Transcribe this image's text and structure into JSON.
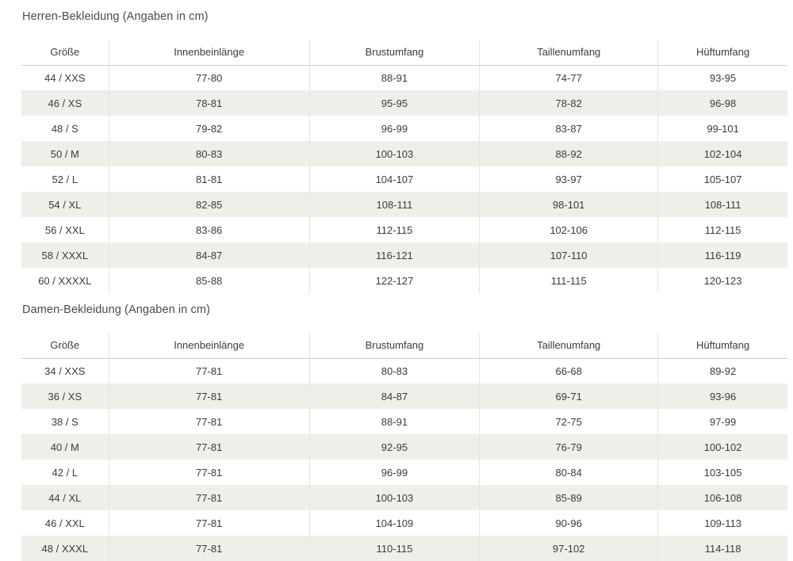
{
  "colors": {
    "page_background": "#ffffff",
    "stripe_row_background": "#f0eee9",
    "cell_divider": "#e6e4e0",
    "header_bottom_border": "#cfcdc9",
    "body_text": "#3b3b3b",
    "title_text": "#4a4a4a"
  },
  "sections": [
    {
      "title": "Herren-Bekleidung (Angaben in cm)",
      "table": {
        "headers": [
          "Größe",
          "Innenbeinlänge",
          "Brustumfang",
          "Taillenumfang",
          "Hüftumfang"
        ],
        "rows": [
          [
            "44 / XXS",
            "77-80",
            "88-91",
            "74-77",
            "93-95"
          ],
          [
            "46 / XS",
            "78-81",
            "95-95",
            "78-82",
            "96-98"
          ],
          [
            "48 / S",
            "79-82",
            "96-99",
            "83-87",
            "99-101"
          ],
          [
            "50 / M",
            "80-83",
            "100-103",
            "88-92",
            "102-104"
          ],
          [
            "52 / L",
            "81-81",
            "104-107",
            "93-97",
            "105-107"
          ],
          [
            "54 / XL",
            "82-85",
            "108-111",
            "98-101",
            "108-111"
          ],
          [
            "56 / XXL",
            "83-86",
            "112-115",
            "102-106",
            "112-115"
          ],
          [
            "58 / XXXL",
            "84-87",
            "116-121",
            "107-110",
            "116-119"
          ],
          [
            "60 / XXXXL",
            "85-88",
            "122-127",
            "111-115",
            "120-123"
          ]
        ]
      }
    },
    {
      "title": "Damen-Bekleidung (Angaben in cm)",
      "table": {
        "headers": [
          "Größe",
          "Innenbeinlänge",
          "Brustumfang",
          "Taillenumfang",
          "Hüftumfang"
        ],
        "rows": [
          [
            "34 / XXS",
            "77-81",
            "80-83",
            "66-68",
            "89-92"
          ],
          [
            "36 / XS",
            "77-81",
            "84-87",
            "69-71",
            "93-96"
          ],
          [
            "38 / S",
            "77-81",
            "88-91",
            "72-75",
            "97-99"
          ],
          [
            "40 / M",
            "77-81",
            "92-95",
            "76-79",
            "100-102"
          ],
          [
            "42 / L",
            "77-81",
            "96-99",
            "80-84",
            "103-105"
          ],
          [
            "44 / XL",
            "77-81",
            "100-103",
            "85-89",
            "106-108"
          ],
          [
            "46 / XXL",
            "77-81",
            "104-109",
            "90-96",
            "109-113"
          ],
          [
            "48 / XXXL",
            "77-81",
            "110-115",
            "97-102",
            "114-118"
          ]
        ]
      }
    }
  ]
}
